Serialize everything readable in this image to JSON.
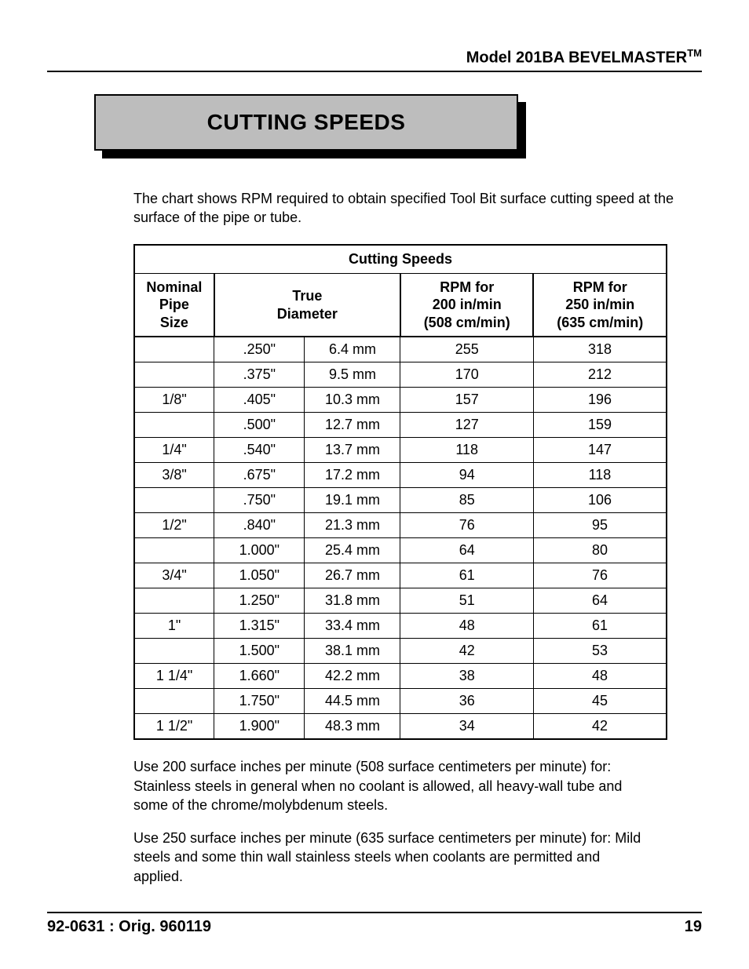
{
  "header": {
    "model_line_prefix": "Model 201BA BEVELMASTER",
    "trademark": "TM"
  },
  "title": "CUTTING SPEEDS",
  "intro": "The chart shows RPM required to obtain specified Tool Bit surface cutting speed at the surface of the pipe or tube.",
  "table": {
    "caption": "Cutting Speeds",
    "headers": {
      "nominal": "Nominal\nPipe\nSize",
      "true_diameter": "True\nDiameter",
      "rpm200": "RPM for\n200 in/min\n(508 cm/min)",
      "rpm250": "RPM for\n250 in/min\n(635 cm/min)"
    },
    "rows": [
      {
        "nominal": "",
        "dia_in": ".250\"",
        "dia_mm": "6.4 mm",
        "rpm200": "255",
        "rpm250": "318"
      },
      {
        "nominal": "",
        "dia_in": ".375\"",
        "dia_mm": "9.5 mm",
        "rpm200": "170",
        "rpm250": "212"
      },
      {
        "nominal": "1/8\"",
        "dia_in": ".405\"",
        "dia_mm": "10.3 mm",
        "rpm200": "157",
        "rpm250": "196"
      },
      {
        "nominal": "",
        "dia_in": ".500\"",
        "dia_mm": "12.7 mm",
        "rpm200": "127",
        "rpm250": "159"
      },
      {
        "nominal": "1/4\"",
        "dia_in": ".540\"",
        "dia_mm": "13.7 mm",
        "rpm200": "118",
        "rpm250": "147"
      },
      {
        "nominal": "3/8\"",
        "dia_in": ".675\"",
        "dia_mm": "17.2 mm",
        "rpm200": "94",
        "rpm250": "118"
      },
      {
        "nominal": "",
        "dia_in": ".750\"",
        "dia_mm": "19.1 mm",
        "rpm200": "85",
        "rpm250": "106"
      },
      {
        "nominal": "1/2\"",
        "dia_in": ".840\"",
        "dia_mm": "21.3 mm",
        "rpm200": "76",
        "rpm250": "95"
      },
      {
        "nominal": "",
        "dia_in": "1.000\"",
        "dia_mm": "25.4 mm",
        "rpm200": "64",
        "rpm250": "80"
      },
      {
        "nominal": "3/4\"",
        "dia_in": "1.050\"",
        "dia_mm": "26.7 mm",
        "rpm200": "61",
        "rpm250": "76"
      },
      {
        "nominal": "",
        "dia_in": "1.250\"",
        "dia_mm": "31.8 mm",
        "rpm200": "51",
        "rpm250": "64"
      },
      {
        "nominal": "1\"",
        "dia_in": "1.315\"",
        "dia_mm": "33.4 mm",
        "rpm200": "48",
        "rpm250": "61"
      },
      {
        "nominal": "",
        "dia_in": "1.500\"",
        "dia_mm": "38.1 mm",
        "rpm200": "42",
        "rpm250": "53"
      },
      {
        "nominal": "1 1/4\"",
        "dia_in": "1.660\"",
        "dia_mm": "42.2 mm",
        "rpm200": "38",
        "rpm250": "48"
      },
      {
        "nominal": "",
        "dia_in": "1.750\"",
        "dia_mm": "44.5 mm",
        "rpm200": "36",
        "rpm250": "45"
      },
      {
        "nominal": "1 1/2\"",
        "dia_in": "1.900\"",
        "dia_mm": "48.3 mm",
        "rpm200": "34",
        "rpm250": "42"
      }
    ]
  },
  "notes": {
    "p1": "Use 200 surface inches per minute (508 surface centimeters per minute) for: Stainless steels in general when no coolant is allowed, all heavy-wall tube and some of the chrome/molybdenum steels.",
    "p2": "Use 250 surface inches per minute (635 surface centimeters per minute) for: Mild steels and some thin wall stainless steels when coolants are permitted and applied."
  },
  "footer": {
    "doc_id": "92-0631 : Orig. 960119",
    "page": "19"
  },
  "style": {
    "page_bg": "#ffffff",
    "text_color": "#000000",
    "title_box_bg": "#bdbdbd",
    "title_shadow": "#000000",
    "rule_color": "#000000",
    "body_fontsize_pt": 13,
    "title_fontsize_pt": 21,
    "header_fontsize_pt": 15,
    "font_family": "Arial, Helvetica, sans-serif"
  }
}
